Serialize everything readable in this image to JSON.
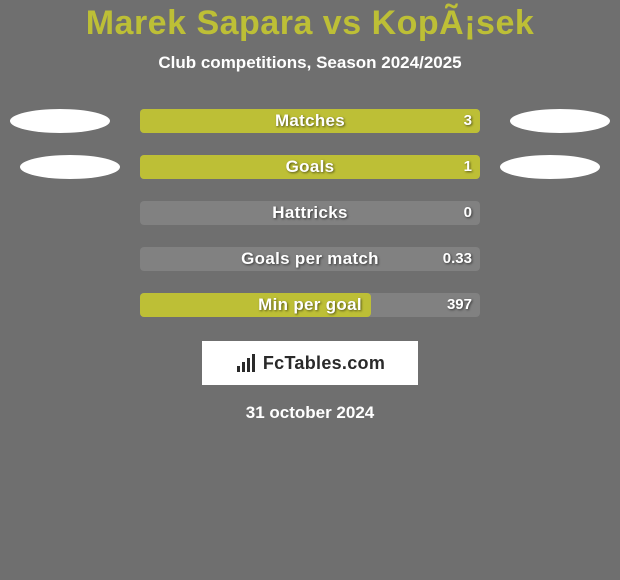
{
  "background_color": "#6f6f6f",
  "title": {
    "text": "Marek Sapara vs KopÃ¡sek",
    "color": "#bdbf36",
    "fontsize": 34
  },
  "subtitle": {
    "text": "Club competitions, Season 2024/2025",
    "color": "#ffffff",
    "fontsize": 17
  },
  "bar_style": {
    "track_color": "#818181",
    "fill_color": "#bdbf36",
    "label_color": "#ffffff",
    "value_color": "#ffffff",
    "label_fontsize": 17,
    "value_fontsize": 15,
    "pill_color": "#ffffff"
  },
  "rows": [
    {
      "label": "Matches",
      "value": "3",
      "fill_ratio": 1.0,
      "pills": "wide"
    },
    {
      "label": "Goals",
      "value": "1",
      "fill_ratio": 1.0,
      "pills": "narrow"
    },
    {
      "label": "Hattricks",
      "value": "0",
      "fill_ratio": 0.0,
      "pills": "none"
    },
    {
      "label": "Goals per match",
      "value": "0.33",
      "fill_ratio": 0.0,
      "pills": "none"
    },
    {
      "label": "Min per goal",
      "value": "397",
      "fill_ratio": 0.68,
      "pills": "none"
    }
  ],
  "logo": {
    "box_bg": "#ffffff",
    "text": "FcTables.com",
    "text_color": "#2a2a2a",
    "icon_color": "#2a2a2a",
    "fontsize": 18
  },
  "footer": {
    "text": "31 october 2024",
    "color": "#ffffff",
    "fontsize": 17
  }
}
